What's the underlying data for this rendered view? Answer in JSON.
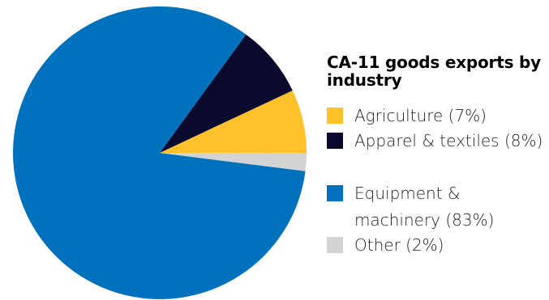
{
  "chart_data": {
    "type": "pie",
    "title": "CA-11 goods exports by industry",
    "slices": [
      {
        "label": "Agriculture (7%)",
        "name": "Agriculture",
        "value": 7,
        "color": "#FFC12A"
      },
      {
        "label": "Apparel & textiles (8%)",
        "name": "Apparel & textiles",
        "value": 8,
        "color": "#0A0A2E"
      },
      {
        "label": "Equipment & machinery (83%)",
        "name": "Equipment & machinery",
        "value": 83,
        "color": "#0071BC"
      },
      {
        "label": "Other (2%)",
        "name": "Other",
        "value": 2,
        "color": "#D4D4D4"
      }
    ],
    "legend_position": "right"
  }
}
